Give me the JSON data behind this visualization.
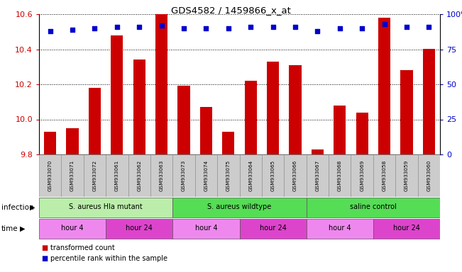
{
  "title": "GDS4582 / 1459866_x_at",
  "samples": [
    "GSM933070",
    "GSM933071",
    "GSM933072",
    "GSM933061",
    "GSM933062",
    "GSM933063",
    "GSM933073",
    "GSM933074",
    "GSM933075",
    "GSM933064",
    "GSM933065",
    "GSM933066",
    "GSM933067",
    "GSM933068",
    "GSM933069",
    "GSM933058",
    "GSM933059",
    "GSM933060"
  ],
  "bar_values": [
    9.93,
    9.95,
    10.18,
    10.48,
    10.34,
    10.6,
    10.19,
    10.07,
    9.93,
    10.22,
    10.33,
    10.31,
    9.83,
    10.08,
    10.04,
    10.58,
    10.28,
    10.4
  ],
  "percentile_values": [
    88,
    89,
    90,
    91,
    91,
    92,
    90,
    90,
    90,
    91,
    91,
    91,
    88,
    90,
    90,
    93,
    91,
    91
  ],
  "ylim_left": [
    9.8,
    10.6
  ],
  "ylim_right": [
    0,
    100
  ],
  "yticks_left": [
    9.8,
    10.0,
    10.2,
    10.4,
    10.6
  ],
  "yticks_right": [
    0,
    25,
    50,
    75,
    100
  ],
  "bar_color": "#cc0000",
  "percentile_color": "#0000cc",
  "bar_bottom": 9.8,
  "infection_groups": [
    {
      "label": "S. aureus Hla mutant",
      "start": 0,
      "end": 6,
      "color": "#bbeeaa"
    },
    {
      "label": "S. aureus wildtype",
      "start": 6,
      "end": 12,
      "color": "#55dd55"
    },
    {
      "label": "saline control",
      "start": 12,
      "end": 18,
      "color": "#55dd55"
    }
  ],
  "time_groups": [
    {
      "label": "hour 4",
      "start": 0,
      "end": 3,
      "color": "#ee88ee"
    },
    {
      "label": "hour 24",
      "start": 3,
      "end": 6,
      "color": "#dd44cc"
    },
    {
      "label": "hour 4",
      "start": 6,
      "end": 9,
      "color": "#ee88ee"
    },
    {
      "label": "hour 24",
      "start": 9,
      "end": 12,
      "color": "#dd44cc"
    },
    {
      "label": "hour 4",
      "start": 12,
      "end": 15,
      "color": "#ee88ee"
    },
    {
      "label": "hour 24",
      "start": 15,
      "end": 18,
      "color": "#dd44cc"
    }
  ],
  "legend_items": [
    {
      "label": "transformed count",
      "color": "#cc0000"
    },
    {
      "label": "percentile rank within the sample",
      "color": "#0000cc"
    }
  ],
  "infection_label": "infection",
  "time_label": "time",
  "background_color": "#ffffff",
  "tick_label_color_left": "#cc0000",
  "tick_label_color_right": "#0000cc",
  "sample_box_color": "#cccccc",
  "arrow_color": "#333333"
}
